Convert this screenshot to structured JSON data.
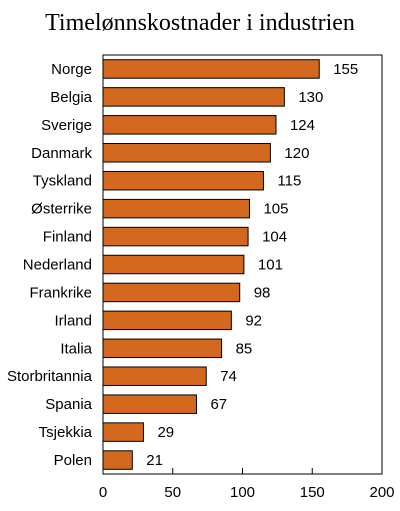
{
  "chart_data": {
    "type": "bar",
    "orientation": "horizontal",
    "title": "Timelønnskostnader i industrien",
    "xlabel": "",
    "ylabel": "",
    "xlim": [
      0,
      200
    ],
    "xticks": [
      0,
      50,
      100,
      150,
      200
    ],
    "grid": false,
    "bar_color": "#D2691E",
    "categories": [
      "Norge",
      "Belgia",
      "Sverige",
      "Danmark",
      "Tyskland",
      "Østerrike",
      "Finland",
      "Nederland",
      "Frankrike",
      "Irland",
      "Italia",
      "Storbritannia",
      "Spania",
      "Tsjekkia",
      "Polen"
    ],
    "values": [
      155,
      130,
      124,
      120,
      115,
      105,
      104,
      101,
      98,
      92,
      85,
      74,
      67,
      29,
      21
    ]
  }
}
